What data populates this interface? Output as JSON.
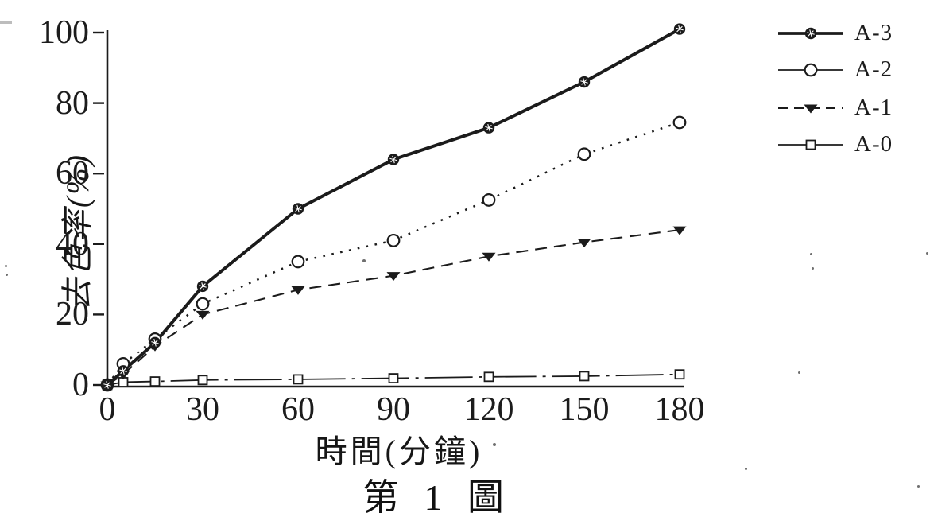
{
  "figure": {
    "caption": "第 1 圖",
    "background_color": "#ffffff",
    "ink_color": "#1b1b1b"
  },
  "chart_data": {
    "type": "line",
    "title": "",
    "xlabel": "時間(分鐘)",
    "ylabel": "去色率(%)",
    "x": [
      0,
      5,
      15,
      30,
      60,
      90,
      120,
      150,
      180
    ],
    "x_ticks": [
      0,
      30,
      60,
      90,
      120,
      150,
      180
    ],
    "y_ticks": [
      0,
      20,
      40,
      60,
      80,
      100
    ],
    "xlim": [
      0,
      180
    ],
    "ylim": [
      0,
      100
    ],
    "grid": false,
    "legend_position": "outside-right-top",
    "series": [
      {
        "name": "A-3",
        "marker": "filled-circle",
        "line_style": "solid",
        "values": [
          0,
          4,
          12,
          28,
          50,
          64,
          73,
          86,
          101
        ]
      },
      {
        "name": "A-2",
        "marker": "open-circle",
        "line_style": "dotted",
        "values": [
          0,
          6,
          13,
          23,
          35,
          41,
          52.5,
          65.5,
          74.5
        ]
      },
      {
        "name": "A-1",
        "marker": "filled-triangle-down",
        "line_style": "dashed",
        "values": [
          0,
          3,
          11,
          20,
          27,
          31,
          36.5,
          40.5,
          44
        ]
      },
      {
        "name": "A-0",
        "marker": "open-square",
        "line_style": "dash-dot",
        "values": [
          0,
          0.8,
          1,
          1.4,
          1.6,
          1.9,
          2.3,
          2.5,
          3
        ]
      }
    ]
  }
}
